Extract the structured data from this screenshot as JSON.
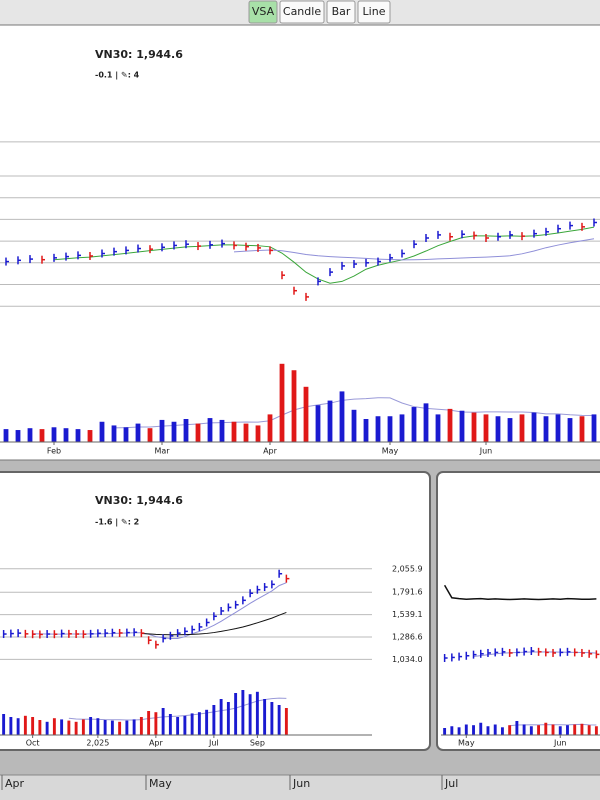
{
  "toolbar": {
    "buttons": [
      "VSA",
      "Candle",
      "Bar",
      "Line"
    ],
    "active": 0
  },
  "chart_data": [
    {
      "type": "vsa",
      "title": "VN30: 1,944.6",
      "subtitle": "-0.1 | ✎: 4",
      "categories": [
        null,
        null,
        null,
        null,
        "Feb",
        null,
        null,
        null,
        null,
        null,
        null,
        null,
        null,
        "Mar",
        null,
        null,
        null,
        null,
        null,
        null,
        null,
        null,
        "Apr",
        null,
        null,
        null,
        null,
        null,
        null,
        null,
        null,
        null,
        "May",
        null,
        null,
        null,
        null,
        null,
        null,
        null,
        "Jun",
        null,
        null,
        null,
        null,
        null,
        null,
        null,
        null,
        null
      ],
      "close": [
        1262,
        1264,
        1266,
        1265,
        1268,
        1270,
        1272,
        1271,
        1275,
        1278,
        1280,
        1283,
        1282,
        1285,
        1288,
        1290,
        1287,
        1289,
        1291,
        1288,
        1286,
        1284,
        1280,
        1240,
        1215,
        1205,
        1230,
        1245,
        1255,
        1258,
        1260,
        1262,
        1268,
        1275,
        1290,
        1300,
        1305,
        1302,
        1306,
        1304,
        1300,
        1302,
        1305,
        1303,
        1307,
        1310,
        1315,
        1320,
        1318,
        1325
      ],
      "volume": [
        14,
        13,
        15,
        14,
        16,
        15,
        14,
        13,
        22,
        18,
        16,
        20,
        15,
        24,
        22,
        25,
        20,
        26,
        24,
        22,
        20,
        18,
        30,
        85,
        78,
        60,
        40,
        45,
        55,
        35,
        25,
        28,
        28,
        30,
        38,
        42,
        30,
        36,
        34,
        32,
        30,
        28,
        26,
        30,
        32,
        28,
        30,
        26,
        28,
        30
      ],
      "ylim": [
        1200,
        1500
      ],
      "gridlines": [
        1190,
        1225,
        1260,
        1295,
        1330,
        1365,
        1400,
        1455
      ],
      "vlim": [
        0,
        100
      ]
    },
    {
      "type": "vsa",
      "title": "VN30: 1,944.6",
      "subtitle": "-1.6 | ✎: 2",
      "categories": [
        null,
        null,
        null,
        null,
        "Oct",
        null,
        null,
        null,
        null,
        null,
        null,
        null,
        null,
        "2,025",
        null,
        null,
        null,
        null,
        null,
        null,
        null,
        "Apr",
        null,
        null,
        null,
        null,
        null,
        null,
        null,
        "Jul",
        null,
        null,
        null,
        null,
        null,
        "Sep",
        null,
        null,
        null,
        null
      ],
      "close": [
        1320,
        1325,
        1330,
        1322,
        1318,
        1315,
        1320,
        1318,
        1325,
        1322,
        1320,
        1318,
        1322,
        1328,
        1330,
        1335,
        1332,
        1336,
        1340,
        1330,
        1250,
        1200,
        1270,
        1300,
        1330,
        1350,
        1370,
        1400,
        1450,
        1520,
        1580,
        1620,
        1650,
        1700,
        1780,
        1820,
        1850,
        1880,
        2000,
        1944.6
      ],
      "volume": [
        35,
        30,
        28,
        32,
        30,
        25,
        22,
        28,
        26,
        24,
        22,
        26,
        30,
        28,
        25,
        24,
        22,
        24,
        26,
        30,
        40,
        38,
        45,
        35,
        30,
        32,
        36,
        38,
        42,
        50,
        60,
        55,
        70,
        75,
        68,
        72,
        60,
        55,
        50,
        45
      ],
      "ylim": [
        700,
        2200
      ],
      "yticks": [
        {
          "value": 2055.9,
          "label": "2,055.9"
        },
        {
          "value": 1791.6,
          "label": "1,791.6"
        },
        {
          "value": 1539.1,
          "label": "1,539.1"
        },
        {
          "value": 1286.6,
          "label": "1,286.6"
        },
        {
          "value": 1034.0,
          "label": "1,034.0"
        }
      ],
      "vlim": [
        0,
        100
      ]
    },
    {
      "type": "vsa",
      "categories": [
        null,
        null,
        null,
        "May",
        null,
        null,
        null,
        null,
        null,
        null,
        null,
        null,
        null,
        null,
        null,
        null,
        "Jun",
        null,
        null,
        null,
        null,
        null
      ],
      "close": [
        1150,
        1152,
        1155,
        1158,
        1162,
        1165,
        1168,
        1170,
        1172,
        1168,
        1170,
        1173,
        1175,
        1172,
        1170,
        1168,
        1170,
        1172,
        1170,
        1168,
        1165,
        1163
      ],
      "line": [
        1410,
        1365,
        1362,
        1360,
        1361,
        1362,
        1360,
        1361,
        1360,
        1359,
        1360,
        1361,
        1360,
        1359,
        1360,
        1361,
        1360,
        1362,
        1361,
        1360,
        1360,
        1361
      ],
      "volume": [
        20,
        25,
        22,
        30,
        28,
        35,
        25,
        30,
        22,
        28,
        40,
        30,
        25,
        28,
        35,
        30,
        25,
        28,
        30,
        32,
        28,
        25
      ],
      "ylim": [
        1000,
        1500
      ],
      "vlim": [
        0,
        100
      ]
    }
  ],
  "timeline": [
    "Apr",
    "May",
    "Jun",
    "Jul"
  ]
}
